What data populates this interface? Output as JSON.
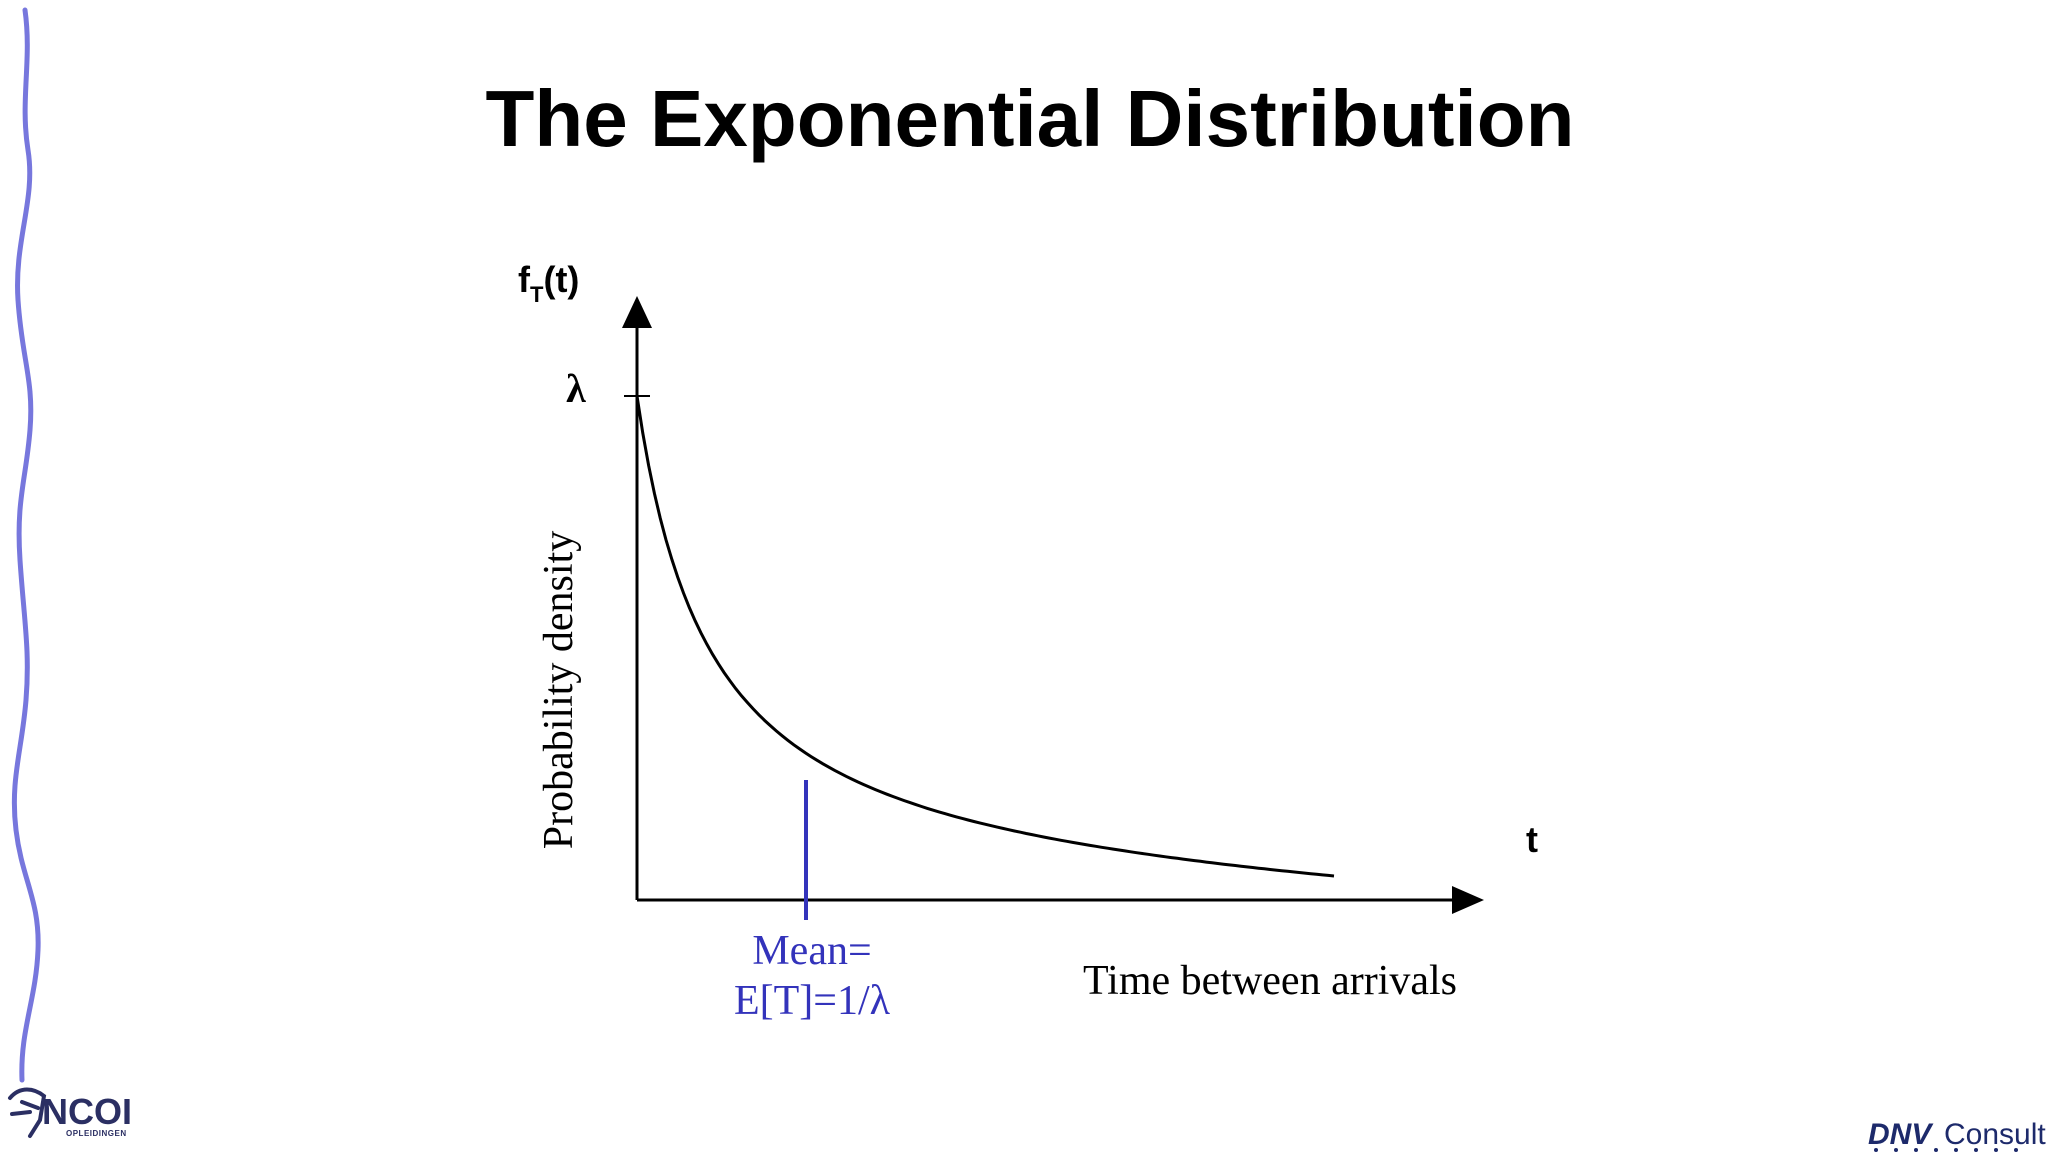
{
  "slide": {
    "title": "The Exponential Distribution"
  },
  "diagram": {
    "y_axis_symbol": "f",
    "y_axis_subscript": "T",
    "y_axis_argument": "(t)",
    "y_intercept_label": "λ",
    "y_axis_description": "Probability density",
    "x_axis_symbol": "t",
    "x_axis_description": "Time between arrivals",
    "mean_label_line1": "Mean=",
    "mean_label_line2": "E[T]=1/",
    "mean_label_lambda": "λ",
    "curve_color": "#000000",
    "mean_line_color": "#3333bb"
  },
  "branding": {
    "left_logo_text": "NCOI",
    "left_logo_subtext": "OPLEIDINGEN",
    "right_logo_brand": "DNV",
    "right_logo_text": "Consult",
    "side_rule_color": "#7777dd"
  }
}
